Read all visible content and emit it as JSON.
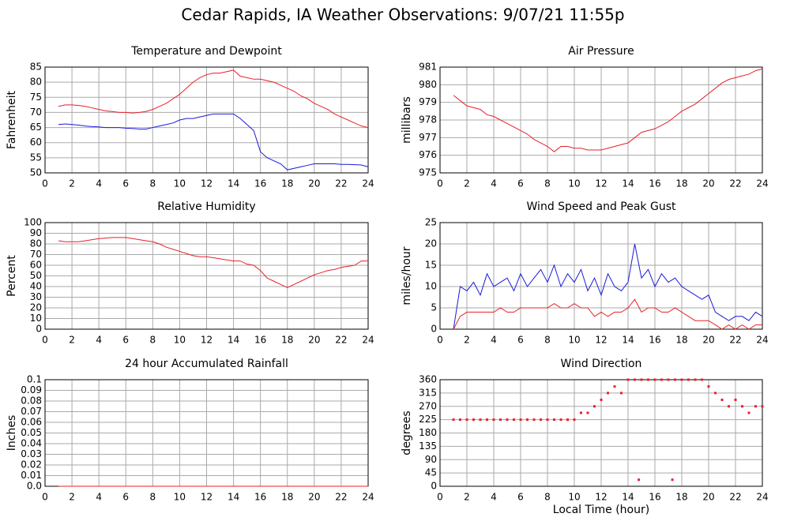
{
  "title": "Cedar Rapids, IA Weather Observations: 9/07/21 11:55p",
  "chart_data": [
    {
      "type": "line",
      "title": "Temperature and Dewpoint",
      "ylabel": "Fahrenheit",
      "xlim": [
        0,
        24
      ],
      "xticks": [
        0,
        2,
        4,
        6,
        8,
        10,
        12,
        14,
        16,
        18,
        20,
        22,
        24
      ],
      "ylim": [
        50,
        85
      ],
      "yticks": [
        50,
        55,
        60,
        65,
        70,
        75,
        80,
        85
      ],
      "grid": true,
      "x": [
        1,
        1.5,
        2,
        2.5,
        3,
        3.5,
        4,
        4.5,
        5,
        5.5,
        6,
        6.5,
        7,
        7.5,
        8,
        8.5,
        9,
        9.5,
        10,
        10.5,
        11,
        11.5,
        12,
        12.5,
        13,
        13.5,
        14,
        14.5,
        15,
        15.5,
        16,
        16.5,
        17,
        17.5,
        18,
        18.5,
        19,
        19.5,
        20,
        20.5,
        21,
        21.5,
        22,
        22.5,
        23,
        23.5,
        24
      ],
      "series": [
        {
          "color": "#e8202a",
          "values": [
            72,
            72.5,
            72.5,
            72.3,
            72,
            71.5,
            71,
            70.5,
            70.3,
            70,
            70,
            69.8,
            70,
            70.3,
            71,
            72,
            73,
            74.5,
            76,
            78,
            80,
            81.5,
            82.5,
            83,
            83,
            83.5,
            84,
            82,
            81.5,
            81,
            81,
            80.5,
            80,
            79,
            78,
            77,
            75.5,
            74.5,
            73,
            72,
            71,
            69.5,
            68.5,
            67.5,
            66.5,
            65.5,
            65
          ]
        },
        {
          "color": "#1a1adc",
          "values": [
            66,
            66.2,
            66,
            65.8,
            65.5,
            65.3,
            65.2,
            65,
            65,
            65,
            64.8,
            64.7,
            64.5,
            64.5,
            65,
            65.5,
            66,
            66.5,
            67.5,
            68,
            68,
            68.5,
            69,
            69.5,
            69.5,
            69.5,
            69.5,
            68,
            66,
            64,
            57,
            55,
            54,
            53,
            51,
            51.5,
            52,
            52.5,
            53,
            53,
            53,
            53,
            52.8,
            52.8,
            52.7,
            52.6,
            52
          ]
        }
      ]
    },
    {
      "type": "line",
      "title": "Air Pressure",
      "ylabel": "millibars",
      "xlim": [
        0,
        24
      ],
      "xticks": [
        0,
        2,
        4,
        6,
        8,
        10,
        12,
        14,
        16,
        18,
        20,
        22,
        24
      ],
      "ylim": [
        975,
        981
      ],
      "yticks": [
        975,
        976,
        977,
        978,
        979,
        980,
        981
      ],
      "grid": true,
      "x": [
        1,
        1.5,
        2,
        2.5,
        3,
        3.5,
        4,
        4.5,
        5,
        5.5,
        6,
        6.5,
        7,
        7.5,
        8,
        8.5,
        9,
        9.5,
        10,
        10.5,
        11,
        11.5,
        12,
        12.5,
        13,
        13.5,
        14,
        14.5,
        15,
        15.5,
        16,
        16.5,
        17,
        17.5,
        18,
        18.5,
        19,
        19.5,
        20,
        20.5,
        21,
        21.5,
        22,
        22.5,
        23,
        23.5,
        24
      ],
      "series": [
        {
          "color": "#e8202a",
          "values": [
            979.4,
            979.1,
            978.8,
            978.7,
            978.6,
            978.3,
            978.2,
            978.0,
            977.8,
            977.6,
            977.4,
            977.2,
            976.9,
            976.7,
            976.5,
            976.2,
            976.5,
            976.5,
            976.4,
            976.4,
            976.3,
            976.3,
            976.3,
            976.4,
            976.5,
            976.6,
            976.7,
            977.0,
            977.3,
            977.4,
            977.5,
            977.7,
            977.9,
            978.2,
            978.5,
            978.7,
            978.9,
            979.2,
            979.5,
            979.8,
            980.1,
            980.3,
            980.4,
            980.5,
            980.6,
            980.8,
            980.9
          ]
        }
      ]
    },
    {
      "type": "line",
      "title": "Relative Humidity",
      "ylabel": "Percent",
      "xlim": [
        0,
        24
      ],
      "xticks": [
        0,
        2,
        4,
        6,
        8,
        10,
        12,
        14,
        16,
        18,
        20,
        22,
        24
      ],
      "ylim": [
        0,
        100
      ],
      "yticks": [
        0,
        10,
        20,
        30,
        40,
        50,
        60,
        70,
        80,
        90,
        100
      ],
      "grid": true,
      "x": [
        1,
        1.5,
        2,
        2.5,
        3,
        3.5,
        4,
        4.5,
        5,
        5.5,
        6,
        6.5,
        7,
        7.5,
        8,
        8.5,
        9,
        9.5,
        10,
        10.5,
        11,
        11.5,
        12,
        12.5,
        13,
        13.5,
        14,
        14.5,
        15,
        15.5,
        16,
        16.5,
        17,
        17.5,
        18,
        18.5,
        19,
        19.5,
        20,
        20.5,
        21,
        21.5,
        22,
        22.5,
        23,
        23.5,
        24
      ],
      "series": [
        {
          "color": "#e8202a",
          "values": [
            83,
            82,
            82,
            82,
            83,
            84,
            85,
            85.5,
            86,
            86,
            86,
            85,
            84,
            83,
            82,
            80,
            77,
            75,
            73,
            71,
            69,
            68,
            68,
            67,
            66,
            65,
            64,
            64,
            61,
            60,
            55,
            48,
            45,
            42,
            39,
            42,
            45,
            48,
            51,
            53,
            55,
            56,
            58,
            59,
            60,
            64,
            64
          ]
        }
      ]
    },
    {
      "type": "line",
      "title": "Wind Speed and Peak Gust",
      "ylabel": "miles/hour",
      "xlim": [
        0,
        24
      ],
      "xticks": [
        0,
        2,
        4,
        6,
        8,
        10,
        12,
        14,
        16,
        18,
        20,
        22,
        24
      ],
      "ylim": [
        0,
        25
      ],
      "yticks": [
        0,
        5,
        10,
        15,
        20,
        25
      ],
      "grid": true,
      "x": [
        1,
        1.5,
        2,
        2.5,
        3,
        3.5,
        4,
        4.5,
        5,
        5.5,
        6,
        6.5,
        7,
        7.5,
        8,
        8.5,
        9,
        9.5,
        10,
        10.5,
        11,
        11.5,
        12,
        12.5,
        13,
        13.5,
        14,
        14.5,
        15,
        15.5,
        16,
        16.5,
        17,
        17.5,
        18,
        18.5,
        19,
        19.5,
        20,
        20.5,
        21,
        21.5,
        22,
        22.5,
        23,
        23.5,
        24
      ],
      "series": [
        {
          "color": "#1a1adc",
          "values": [
            0,
            10,
            9,
            11,
            8,
            13,
            10,
            11,
            12,
            9,
            13,
            10,
            12,
            14,
            11,
            15,
            10,
            13,
            11,
            14,
            9,
            12,
            8,
            13,
            10,
            9,
            11,
            20,
            12,
            14,
            10,
            13,
            11,
            12,
            10,
            9,
            8,
            7,
            8,
            4,
            3,
            2,
            3,
            3,
            2,
            4,
            3
          ]
        },
        {
          "color": "#e8202a",
          "values": [
            0,
            3,
            4,
            4,
            4,
            4,
            4,
            5,
            4,
            4,
            5,
            5,
            5,
            5,
            5,
            6,
            5,
            5,
            6,
            5,
            5,
            3,
            4,
            3,
            4,
            4,
            5,
            7,
            4,
            5,
            5,
            4,
            4,
            5,
            4,
            3,
            2,
            2,
            2,
            1,
            0,
            1,
            0,
            1,
            0,
            1,
            1
          ]
        }
      ]
    },
    {
      "type": "line",
      "title": "24 hour Accumulated Rainfall",
      "ylabel": "Inches",
      "xlim": [
        0,
        24
      ],
      "xticks": [
        0,
        2,
        4,
        6,
        8,
        10,
        12,
        14,
        16,
        18,
        20,
        22,
        24
      ],
      "ylim": [
        0,
        0.1
      ],
      "yticks": [
        {
          "value": 0,
          "label": "0.0"
        },
        0.01,
        0.02,
        0.03,
        0.04,
        0.05,
        0.06,
        0.07,
        0.08,
        0.09,
        0.1
      ],
      "grid": true,
      "x": [
        1,
        24
      ],
      "series": [
        {
          "color": "#e8202a",
          "values": [
            0,
            0
          ]
        }
      ]
    },
    {
      "type": "scatter",
      "title": "Wind Direction",
      "ylabel": "degrees",
      "xlabel": "Local Time (hour)",
      "xlim": [
        0,
        24
      ],
      "xticks": [
        0,
        2,
        4,
        6,
        8,
        10,
        12,
        14,
        16,
        18,
        20,
        22,
        24
      ],
      "ylim": [
        0,
        360
      ],
      "yticks": [
        0,
        45,
        90,
        135,
        180,
        225,
        270,
        315,
        360
      ],
      "grid": true,
      "x": [
        1,
        1.5,
        2,
        2.5,
        3,
        3.5,
        4,
        4.5,
        5,
        5.5,
        6,
        6.5,
        7,
        7.5,
        8,
        8.5,
        9,
        9.5,
        10,
        10.5,
        11,
        11.5,
        12,
        12.5,
        13,
        13.5,
        14,
        14.5,
        14.8,
        15,
        15.5,
        16,
        16.5,
        17,
        17.3,
        17.5,
        18,
        18.5,
        19,
        19.5,
        20,
        20.5,
        21,
        21.5,
        22,
        22.5,
        23,
        23.5,
        24
      ],
      "series": [
        {
          "color": "#e8202a",
          "values": [
            225,
            225,
            225,
            225,
            225,
            225,
            225,
            225,
            225,
            225,
            225,
            225,
            225,
            225,
            225,
            225,
            225,
            225,
            225,
            248,
            248,
            270,
            292,
            315,
            337,
            315,
            360,
            360,
            22,
            360,
            360,
            360,
            360,
            360,
            22,
            360,
            360,
            360,
            360,
            360,
            337,
            315,
            292,
            270,
            292,
            270,
            248,
            270,
            270
          ]
        }
      ]
    }
  ]
}
